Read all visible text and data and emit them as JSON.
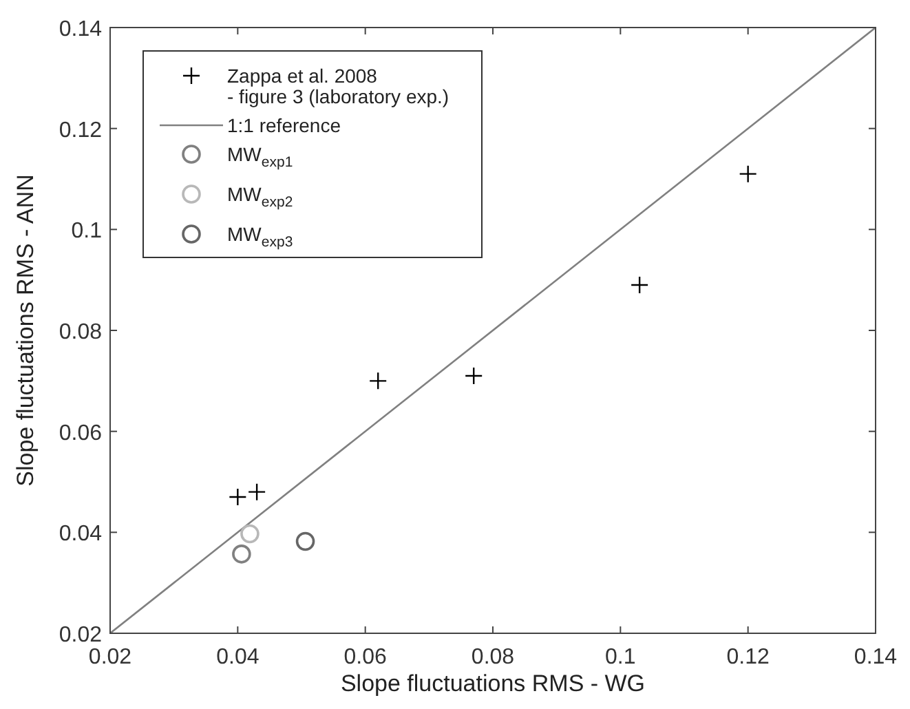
{
  "chart_data": {
    "type": "scatter",
    "xlabel": "Slope fluctuations RMS - WG",
    "ylabel": "Slope fluctuations RMS - ANN",
    "xlim": [
      0.02,
      0.14
    ],
    "xticks": [
      0.02,
      0.04,
      0.06,
      0.08,
      0.1,
      0.12,
      0.14
    ],
    "ylim": [
      0.02,
      0.14
    ],
    "yticks": [
      0.02,
      0.04,
      0.06,
      0.08,
      0.1,
      0.12,
      0.14
    ],
    "grid": false,
    "legend": "top left",
    "series": [
      {
        "name": "Zappa et al. 2008\n- figure 3 (laboratory exp.)",
        "marker": "cross",
        "color": "#000000",
        "x": [
          0.04,
          0.043,
          0.062,
          0.077,
          0.103,
          0.12
        ],
        "values": [
          0.047,
          0.048,
          0.07,
          0.071,
          0.089,
          0.111
        ]
      },
      {
        "name": "1:1 reference",
        "type": "line",
        "marker": "none",
        "color": "#808080",
        "x": [
          0.02,
          0.14
        ],
        "values": [
          0.02,
          0.14
        ]
      },
      {
        "name": "MW$_{exp1}$",
        "marker": "circle",
        "color": "#808080",
        "x": [
          0.0406
        ],
        "values": [
          0.0357
        ]
      },
      {
        "name": "MW$_{exp2}$",
        "marker": "circle",
        "color": "#b8b8b8",
        "x": [
          0.0419
        ],
        "values": [
          0.0397
        ]
      },
      {
        "name": "MW$_{exp3}$",
        "marker": "circle",
        "color": "#666666",
        "x": [
          0.0506
        ],
        "values": [
          0.0382
        ]
      }
    ]
  }
}
